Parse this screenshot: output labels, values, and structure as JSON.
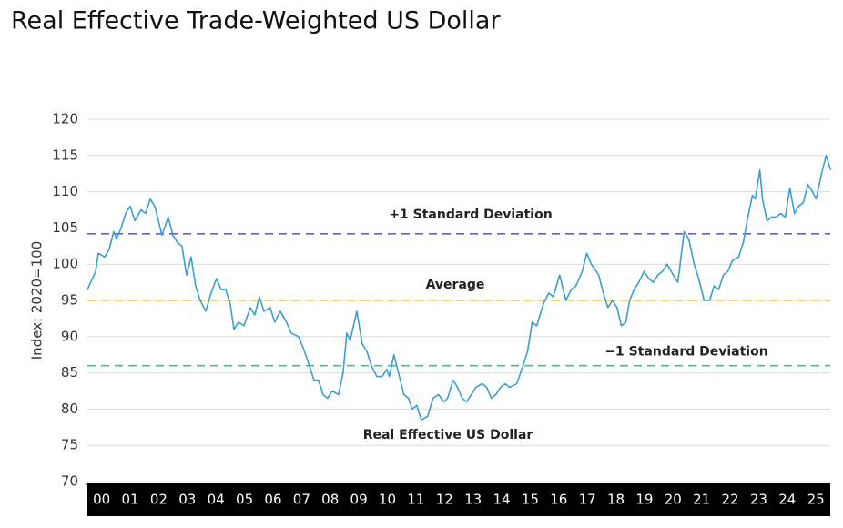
{
  "chart_data": {
    "type": "line",
    "title": "Real Effective Trade-Weighted US Dollar",
    "y_label": "Index: 2020=100",
    "xlim": [
      0,
      26.1
    ],
    "xticks": [
      {
        "value": 0,
        "label": "00"
      },
      {
        "value": 1,
        "label": "01"
      },
      {
        "value": 2,
        "label": "02"
      },
      {
        "value": 3,
        "label": "03"
      },
      {
        "value": 4,
        "label": "04"
      },
      {
        "value": 5,
        "label": "05"
      },
      {
        "value": 6,
        "label": "06"
      },
      {
        "value": 7,
        "label": "07"
      },
      {
        "value": 8,
        "label": "08"
      },
      {
        "value": 9,
        "label": "09"
      },
      {
        "value": 10,
        "label": "10"
      },
      {
        "value": 11,
        "label": "11"
      },
      {
        "value": 12,
        "label": "12"
      },
      {
        "value": 13,
        "label": "13"
      },
      {
        "value": 14,
        "label": "14"
      },
      {
        "value": 15,
        "label": "15"
      },
      {
        "value": 16,
        "label": "16"
      },
      {
        "value": 17,
        "label": "17"
      },
      {
        "value": 18,
        "label": "18"
      },
      {
        "value": 19,
        "label": "19"
      },
      {
        "value": 20,
        "label": "20"
      },
      {
        "value": 21,
        "label": "21"
      },
      {
        "value": 22,
        "label": "22"
      },
      {
        "value": 23,
        "label": "23"
      },
      {
        "value": 24,
        "label": "24"
      },
      {
        "value": 25,
        "label": "25"
      }
    ],
    "ylim": [
      70,
      120
    ],
    "yticks": [
      70,
      75,
      80,
      85,
      90,
      95,
      100,
      105,
      110,
      115,
      120
    ],
    "grid": true,
    "x": [
      0,
      0.29,
      0.38,
      0.61,
      0.76,
      0.92,
      1.02,
      1.18,
      1.34,
      1.5,
      1.66,
      1.88,
      2.04,
      2.2,
      2.36,
      2.61,
      2.83,
      2.99,
      3.15,
      3.31,
      3.47,
      3.63,
      3.79,
      3.95,
      4.14,
      4.33,
      4.52,
      4.68,
      4.84,
      5.0,
      5.13,
      5.29,
      5.48,
      5.7,
      5.86,
      6.02,
      6.18,
      6.4,
      6.56,
      6.75,
      6.97,
      7.13,
      7.39,
      7.55,
      7.77,
      7.93,
      8.09,
      8.25,
      8.41,
      8.57,
      8.79,
      8.95,
      9.08,
      9.2,
      9.43,
      9.62,
      9.78,
      9.94,
      10.13,
      10.32,
      10.48,
      10.57,
      10.73,
      10.89,
      11.08,
      11.24,
      11.37,
      11.53,
      11.69,
      11.91,
      12.1,
      12.29,
      12.48,
      12.61,
      12.8,
      12.96,
      13.12,
      13.28,
      13.44,
      13.6,
      13.82,
      13.98,
      14.14,
      14.3,
      14.46,
      14.62,
      14.78,
      15.03,
      15.25,
      15.41,
      15.57,
      15.73,
      15.96,
      16.15,
      16.31,
      16.53,
      16.75,
      16.94,
      17.1,
      17.32,
      17.48,
      17.64,
      17.9,
      18.06,
      18.22,
      18.38,
      18.54,
      18.69,
      18.85,
      18.98,
      19.14,
      19.3,
      19.49,
      19.65,
      19.81,
      19.97,
      20.13,
      20.29,
      20.51,
      20.67,
      20.89,
      21.05,
      21.24,
      21.4,
      21.59,
      21.78,
      21.94,
      22.1,
      22.26,
      22.42,
      22.58,
      22.8,
      22.96,
      23.12,
      23.28,
      23.38,
      23.54,
      23.63,
      23.79,
      23.95,
      24.11,
      24.27,
      24.43,
      24.59,
      24.75,
      24.9,
      25.06,
      25.22,
      25.38,
      25.51,
      25.7,
      25.86,
      26.02
    ],
    "series": [
      {
        "name": "Real Effective US Dollar",
        "color": "#3a9fd0",
        "values": [
          96.5,
          99,
          101.5,
          101,
          102,
          104.5,
          103.5,
          105,
          107,
          108,
          106,
          107.5,
          107,
          109,
          108,
          104,
          106.5,
          104,
          103,
          102.5,
          98.5,
          101,
          97,
          95,
          93.5,
          96,
          98,
          96.5,
          96.5,
          94.5,
          91,
          92,
          91.5,
          94,
          93,
          95.5,
          93.5,
          94,
          92,
          93.5,
          92,
          90.5,
          90,
          88.5,
          86,
          84,
          84,
          82,
          81.5,
          82.5,
          82,
          85,
          90.5,
          89.5,
          93.5,
          89,
          88,
          86,
          84.5,
          84.5,
          85.5,
          84.5,
          87.5,
          85,
          82,
          81.5,
          80,
          80.5,
          78.5,
          79,
          81.5,
          82,
          81,
          81.5,
          84,
          83,
          81.5,
          81,
          82,
          83,
          83.5,
          83,
          81.5,
          82,
          83,
          83.5,
          83,
          83.5,
          86,
          88,
          92,
          91.5,
          94.5,
          96,
          95.5,
          98.5,
          95,
          96.5,
          97,
          99,
          101.5,
          100,
          98.5,
          96,
          94,
          95,
          94,
          91.5,
          92,
          95,
          96.5,
          97.5,
          99,
          98,
          97.5,
          98.5,
          99,
          100,
          98.5,
          97.5,
          104.5,
          103.5,
          100,
          98,
          95,
          95,
          97,
          96.5,
          98.5,
          99,
          100.5,
          101,
          103,
          106.5,
          109.5,
          109,
          113,
          109,
          106,
          106.5,
          106.5,
          107,
          106.5,
          110.5,
          107,
          108,
          108.5,
          111,
          110,
          109,
          112.5,
          115,
          113
        ]
      }
    ],
    "reference_lines": [
      {
        "label": "+1 Standard Deviation",
        "value": 104.2,
        "color": "#6a5fb3"
      },
      {
        "label": "Average",
        "value": 95,
        "color": "#e6be45"
      },
      {
        "label": "−1 Standard Deviation",
        "value": 86,
        "color": "#2ec4a3"
      }
    ]
  }
}
